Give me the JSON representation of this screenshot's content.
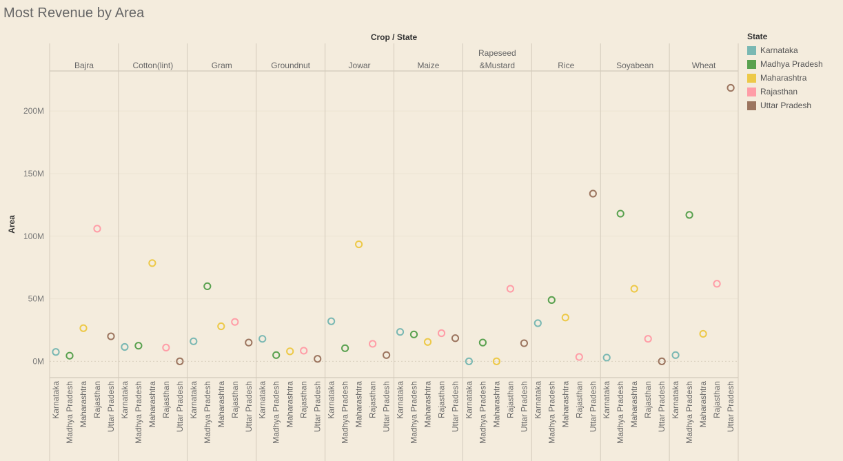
{
  "chart_data": {
    "type": "scatter",
    "title": "Most Revenue by Area",
    "column_header": "Crop / State",
    "ylabel": "Area",
    "ylim": [
      -13,
      232
    ],
    "y_ticks": [
      0,
      50,
      100,
      150,
      200
    ],
    "y_tick_labels": [
      "0M",
      "50M",
      "100M",
      "150M",
      "200M"
    ],
    "y_unit": "millions",
    "grid": true,
    "marker": "open-circle",
    "legend": {
      "title": "State",
      "placement": "right",
      "items": [
        {
          "name": "Karnataka",
          "color": "#7ab8b3"
        },
        {
          "name": "Madhya Pradesh",
          "color": "#59a14f"
        },
        {
          "name": "Maharashtra",
          "color": "#edc948"
        },
        {
          "name": "Rajasthan",
          "color": "#ff9da7"
        },
        {
          "name": "Uttar Pradesh",
          "color": "#9c755f"
        }
      ]
    },
    "states": [
      "Karnataka",
      "Madhya Pradesh",
      "Maharashtra",
      "Rajasthan",
      "Uttar Pradesh"
    ],
    "crops": [
      {
        "name": "Bajra",
        "values": [
          7.5,
          4.5,
          26.5,
          106,
          20
        ]
      },
      {
        "name": "Cotton(lint)",
        "values": [
          11.5,
          12.5,
          78.5,
          11,
          0
        ]
      },
      {
        "name": "Gram",
        "values": [
          16,
          60,
          28,
          31.5,
          15
        ]
      },
      {
        "name": "Groundnut",
        "values": [
          18,
          5,
          8,
          8.5,
          2
        ]
      },
      {
        "name": "Jowar",
        "values": [
          32,
          10.5,
          93.5,
          14,
          5
        ]
      },
      {
        "name": "Maize",
        "values": [
          23.5,
          21.5,
          15.5,
          22.5,
          18.5
        ]
      },
      {
        "name": "Rapeseed &Mustard",
        "values": [
          0,
          15,
          0,
          58,
          14.5
        ]
      },
      {
        "name": "Rice",
        "values": [
          30.5,
          49,
          35,
          3.5,
          134
        ]
      },
      {
        "name": "Soyabean",
        "values": [
          3,
          118,
          58,
          18,
          0
        ]
      },
      {
        "name": "Wheat",
        "values": [
          5,
          117,
          22,
          62,
          218.5
        ]
      }
    ]
  }
}
